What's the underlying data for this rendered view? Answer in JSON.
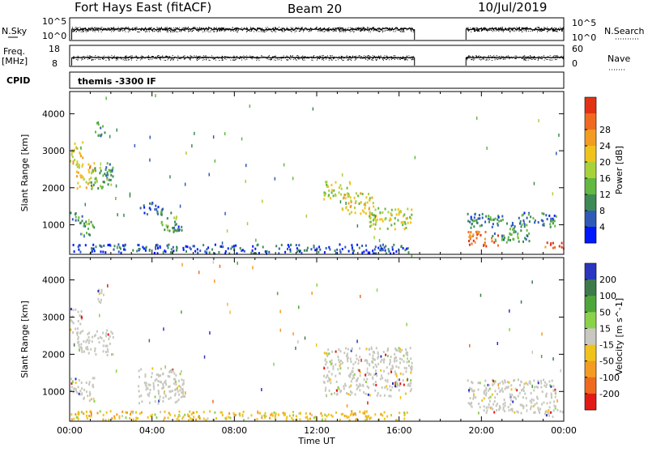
{
  "header": {
    "title": "Fort Hays East (fitACF)",
    "beam": "Beam 20",
    "date": "10/Jul/2019"
  },
  "top_panels": {
    "nsky_label": "N.Sky",
    "nsky_ticks": [
      "10^5",
      "10^0"
    ],
    "nsearch_label": "N.Search",
    "nsearch_ticks": [
      "10^5",
      "10^0"
    ],
    "freq_label_1": "Freq.",
    "freq_label_2": "[MHz]",
    "freq_ticks": [
      "18",
      "8"
    ],
    "nave_label": "Nave",
    "nave_ticks": [
      "60",
      "0"
    ],
    "cpid_label": "CPID",
    "cpid_text": "themis -3300 IF"
  },
  "chart_data": [
    {
      "type": "heatmap",
      "name": "power",
      "xlabel": "",
      "ylabel": "Slant Range [km]",
      "xlim": [
        0,
        24
      ],
      "ylim": [
        200,
        4600
      ],
      "yticks": [
        1000,
        2000,
        3000,
        4000
      ],
      "colorbar": {
        "label": "Power [dB]",
        "range": [
          0,
          32
        ],
        "ticks": [
          "4",
          "8",
          "12",
          "16",
          "20",
          "24",
          "28"
        ],
        "colors": [
          "#0018ff",
          "#2f5ab8",
          "#3c8a55",
          "#62b840",
          "#a8d23a",
          "#f0c21c",
          "#f39b22",
          "#ef6a1e",
          "#e23216"
        ]
      },
      "data_gap_hours": [
        16.75,
        19.25
      ],
      "regions": [
        {
          "t0": 0.0,
          "t1": 0.6,
          "r0": 2600,
          "r1": 3300,
          "p": 18
        },
        {
          "t0": 0.3,
          "t1": 1.2,
          "r0": 2000,
          "r1": 2700,
          "p": 20
        },
        {
          "t0": 1.0,
          "t1": 2.1,
          "r0": 2000,
          "r1": 2600,
          "p": 12
        },
        {
          "t0": 1.7,
          "t1": 2.1,
          "r0": 2200,
          "r1": 2700,
          "p": 10
        },
        {
          "t0": 1.2,
          "t1": 1.7,
          "r0": 3400,
          "r1": 3800,
          "p": 10
        },
        {
          "t0": 0.0,
          "t1": 0.6,
          "r0": 1050,
          "r1": 1400,
          "p": 8
        },
        {
          "t0": 0.5,
          "t1": 1.2,
          "r0": 750,
          "r1": 1150,
          "p": 10
        },
        {
          "t0": 3.3,
          "t1": 4.5,
          "r0": 1300,
          "r1": 1650,
          "p": 6
        },
        {
          "t0": 4.4,
          "t1": 5.2,
          "r0": 850,
          "r1": 1400,
          "p": 12
        },
        {
          "t0": 5.0,
          "t1": 5.6,
          "r0": 700,
          "r1": 1000,
          "p": 6
        },
        {
          "t0": 12.3,
          "t1": 13.6,
          "r0": 1700,
          "r1": 2200,
          "p": 16
        },
        {
          "t0": 13.2,
          "t1": 14.8,
          "r0": 1300,
          "r1": 1900,
          "p": 18
        },
        {
          "t0": 14.5,
          "t1": 16.6,
          "r0": 900,
          "r1": 1500,
          "p": 16
        },
        {
          "t0": 19.3,
          "t1": 23.6,
          "r0": 950,
          "r1": 1350,
          "p": 8
        },
        {
          "t0": 19.3,
          "t1": 20.8,
          "r0": 450,
          "r1": 850,
          "p": 28
        },
        {
          "t0": 20.5,
          "t1": 22.3,
          "r0": 550,
          "r1": 950,
          "p": 10
        },
        {
          "t0": 23.0,
          "t1": 24.0,
          "r0": 350,
          "r1": 550,
          "p": 28
        },
        {
          "t0": 0.0,
          "t1": 16.6,
          "r0": 250,
          "r1": 500,
          "p": 5
        }
      ]
    },
    {
      "type": "heatmap",
      "name": "velocity",
      "xlabel": "Time UT",
      "ylabel": "Slant Range [km]",
      "xlim": [
        0,
        24
      ],
      "ylim": [
        200,
        4600
      ],
      "xticks": [
        "00:00",
        "04:00",
        "08:00",
        "12:00",
        "16:00",
        "20:00",
        "00:00"
      ],
      "yticks": [
        1000,
        2000,
        3000,
        4000
      ],
      "colorbar": {
        "label": "Velocity [m s^-1]",
        "ticks": [
          "200",
          "100",
          "50",
          "15",
          "-15",
          "-50",
          "-100",
          "-200"
        ],
        "colors": [
          "#2a35c0",
          "#3d7a4a",
          "#4da63a",
          "#8ad24a",
          "#c8c8c0",
          "#f0c21c",
          "#f39b22",
          "#ef6a1e",
          "#e21a16"
        ]
      },
      "data_gap_hours": [
        16.75,
        19.25
      ],
      "regions": [
        {
          "t0": 0.0,
          "t1": 0.6,
          "r0": 2600,
          "r1": 3300,
          "v": "grey"
        },
        {
          "t0": 0.3,
          "t1": 2.1,
          "r0": 2000,
          "r1": 2700,
          "v": "grey"
        },
        {
          "t0": 1.2,
          "t1": 1.7,
          "r0": 3400,
          "r1": 3800,
          "v": "grey"
        },
        {
          "t0": 0.0,
          "t1": 1.2,
          "r0": 750,
          "r1": 1400,
          "v": "grey"
        },
        {
          "t0": 3.3,
          "t1": 5.6,
          "r0": 700,
          "r1": 1650,
          "v": "grey"
        },
        {
          "t0": 12.3,
          "t1": 16.6,
          "r0": 900,
          "r1": 2200,
          "v": "grey"
        },
        {
          "t0": 19.3,
          "t1": 23.6,
          "r0": 450,
          "r1": 1350,
          "v": "grey"
        },
        {
          "t0": 23.0,
          "t1": 24.0,
          "r0": 350,
          "r1": 550,
          "v": "grey"
        },
        {
          "t0": 0.0,
          "t1": 16.6,
          "r0": 250,
          "r1": 500,
          "v": "negative"
        }
      ]
    }
  ]
}
